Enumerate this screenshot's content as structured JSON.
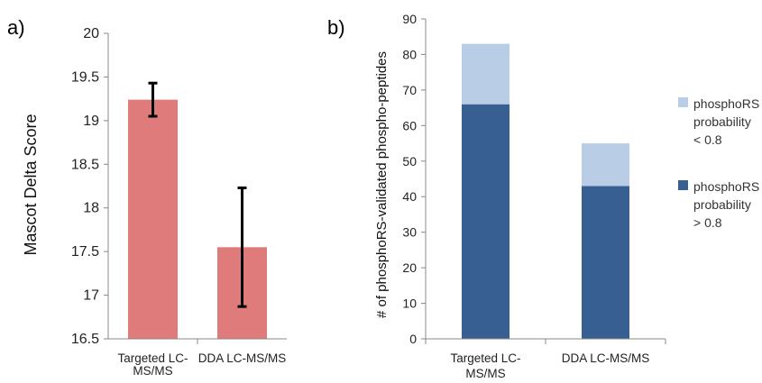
{
  "chart_data": [
    {
      "panel_label": "a)",
      "type": "bar",
      "categories": [
        "Targeted LC-\nMS/MS",
        "DDA LC-MS/MS"
      ],
      "values": [
        19.24,
        17.55
      ],
      "error_bars": [
        [
          19.05,
          19.43
        ],
        [
          16.87,
          18.23
        ]
      ],
      "ylabel": "Mascot Delta Score",
      "xlabel": "",
      "ylim": [
        16.5,
        20
      ],
      "yticks": [
        "16.5",
        "17",
        "17.5",
        "18",
        "18.5",
        "19",
        "19.5",
        "20"
      ],
      "grid": false,
      "color": "#e07b7b"
    },
    {
      "panel_label": "b)",
      "type": "bar",
      "stacked": true,
      "categories": [
        "Targeted LC-\nMS/MS",
        "DDA LC-MS/MS"
      ],
      "series": [
        {
          "name": "phosphoRS probability > 0.8",
          "legend_lines": [
            "phosphoRS",
            "probability",
            "> 0.8"
          ],
          "values": [
            66,
            43
          ],
          "color": "#375f92"
        },
        {
          "name": "phosphoRS probability < 0.8",
          "legend_lines": [
            "phosphoRS",
            "probability",
            "< 0.8"
          ],
          "values": [
            17,
            12
          ],
          "color": "#b9cde6"
        }
      ],
      "ylabel": "# of phosphoRS-validated phospho-peptides",
      "xlabel": "",
      "ylim": [
        0,
        90
      ],
      "yticks": [
        "0",
        "10",
        "20",
        "30",
        "40",
        "50",
        "60",
        "70",
        "80",
        "90"
      ],
      "grid": false,
      "legend_position": "right",
      "legend_order": [
        1,
        0
      ]
    }
  ]
}
